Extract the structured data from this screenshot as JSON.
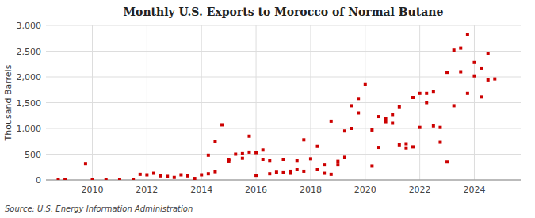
{
  "chart_data": {
    "type": "scatter",
    "title": "Monthly U.S. Exports to Morocco of Normal Butane",
    "ylabel": "Thousand Barrels",
    "annotations": [
      "Source: U.S. Energy Information Administration"
    ],
    "color": "#cc0000",
    "marker": "square",
    "grid": true,
    "xlim": [
      2008.3,
      2025.7
    ],
    "ylim": [
      0,
      3000
    ],
    "xticks": [
      2010,
      2012,
      2014,
      2016,
      2018,
      2020,
      2022,
      2024
    ],
    "yticks": [
      0,
      500,
      {
        "value": 1000,
        "label": "1,000"
      },
      {
        "value": 1500,
        "label": "1,500"
      },
      {
        "value": 2000,
        "label": "2,000"
      },
      {
        "value": 2500,
        "label": "2,500"
      },
      {
        "value": 3000,
        "label": "3,000"
      }
    ],
    "x": [
      2008.75,
      2009.0,
      2009.75,
      2010.0,
      2010.5,
      2011.0,
      2011.5,
      2011.75,
      2012.0,
      2012.25,
      2012.5,
      2012.75,
      2013.0,
      2013.25,
      2013.5,
      2013.75,
      2014.0,
      2014.25,
      2014.25,
      2014.5,
      2014.5,
      2014.75,
      2015.0,
      2015.0,
      2015.25,
      2015.5,
      2015.5,
      2015.75,
      2015.75,
      2016.0,
      2016.0,
      2016.25,
      2016.25,
      2016.5,
      2016.5,
      2016.75,
      2017.0,
      2017.0,
      2017.25,
      2017.25,
      2017.5,
      2017.5,
      2017.75,
      2017.75,
      2018.0,
      2018.25,
      2018.25,
      2018.5,
      2018.5,
      2018.75,
      2018.75,
      2019.0,
      2019.0,
      2019.25,
      2019.25,
      2019.5,
      2019.5,
      2019.75,
      2019.75,
      2020.0,
      2020.25,
      2020.25,
      2020.5,
      2020.5,
      2020.75,
      2020.75,
      2021.0,
      2021.0,
      2021.25,
      2021.25,
      2021.5,
      2021.5,
      2021.75,
      2021.75,
      2022.0,
      2022.0,
      2022.25,
      2022.25,
      2022.5,
      2022.5,
      2022.75,
      2022.75,
      2023.0,
      2023.0,
      2023.25,
      2023.25,
      2023.5,
      2023.5,
      2023.75,
      2023.75,
      2024.0,
      2024.0,
      2024.25,
      2024.25,
      2024.5,
      2024.5,
      2024.75
    ],
    "values": [
      5,
      5,
      320,
      5,
      5,
      5,
      5,
      110,
      100,
      130,
      80,
      70,
      50,
      100,
      80,
      30,
      100,
      120,
      480,
      160,
      750,
      1070,
      370,
      400,
      500,
      420,
      510,
      540,
      850,
      90,
      530,
      400,
      580,
      120,
      380,
      150,
      140,
      400,
      130,
      170,
      200,
      380,
      170,
      780,
      410,
      200,
      650,
      130,
      290,
      110,
      1140,
      290,
      360,
      440,
      950,
      1000,
      1440,
      1300,
      1580,
      1850,
      270,
      970,
      630,
      1230,
      1130,
      1200,
      1100,
      1270,
      680,
      1420,
      620,
      700,
      640,
      1600,
      1020,
      1680,
      1500,
      1680,
      1050,
      1720,
      730,
      1020,
      350,
      2090,
      1440,
      2520,
      2100,
      2560,
      1680,
      2820,
      2020,
      2280,
      1610,
      2170,
      1940,
      2450,
      1960
    ]
  }
}
